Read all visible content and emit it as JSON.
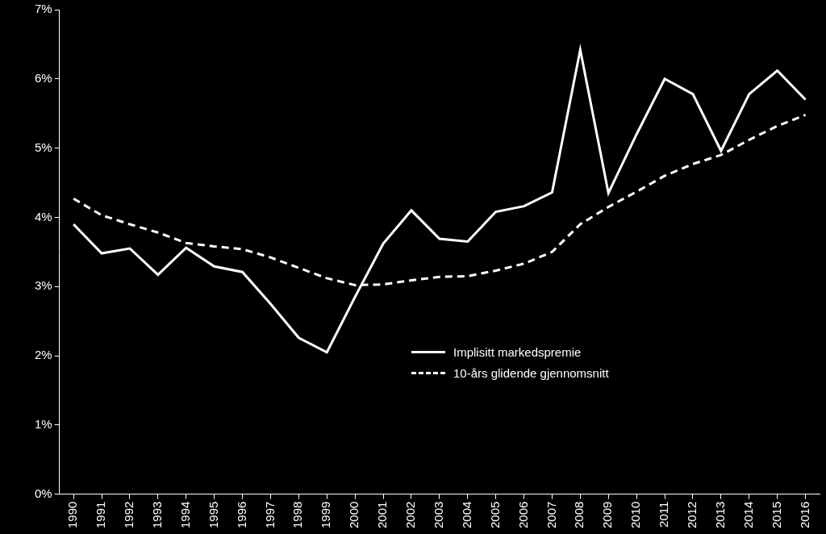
{
  "chart_data": {
    "type": "line",
    "categories": [
      "1990",
      "1991",
      "1992",
      "1993",
      "1994",
      "1995",
      "1996",
      "1997",
      "1998",
      "1999",
      "2000",
      "2001",
      "2002",
      "2003",
      "2004",
      "2005",
      "2006",
      "2007",
      "2008",
      "2009",
      "2010",
      "2011",
      "2012",
      "2013",
      "2014",
      "2015",
      "2016"
    ],
    "series": [
      {
        "name": "Implisitt markedspremie",
        "color": "#ffffff",
        "line_style": "solid",
        "values": [
          3.9,
          3.48,
          3.55,
          3.17,
          3.56,
          3.29,
          3.21,
          2.75,
          2.26,
          2.05,
          2.85,
          3.62,
          4.1,
          3.69,
          3.65,
          4.08,
          4.16,
          4.36,
          6.42,
          4.35,
          5.2,
          6.0,
          5.78,
          4.96,
          5.78,
          6.12,
          5.7
        ]
      },
      {
        "name": "10-års glidende gjennomsnitt",
        "color": "#ffffff",
        "line_style": "dashed",
        "values": [
          4.27,
          4.03,
          3.9,
          3.78,
          3.63,
          3.58,
          3.54,
          3.42,
          3.27,
          3.12,
          3.02,
          3.03,
          3.09,
          3.14,
          3.15,
          3.23,
          3.33,
          3.5,
          3.9,
          4.15,
          4.37,
          4.6,
          4.77,
          4.9,
          5.12,
          5.32,
          5.48
        ]
      }
    ],
    "ylim": [
      0,
      7
    ],
    "yticks": [
      {
        "value": 0,
        "label": "0%"
      },
      {
        "value": 1,
        "label": "1%"
      },
      {
        "value": 2,
        "label": "2%"
      },
      {
        "value": 3,
        "label": "3%"
      },
      {
        "value": 4,
        "label": "4%"
      },
      {
        "value": 5,
        "label": "5%"
      },
      {
        "value": 6,
        "label": "6%"
      },
      {
        "value": 7,
        "label": "7%"
      }
    ],
    "grid": false,
    "legend": "lower right"
  }
}
